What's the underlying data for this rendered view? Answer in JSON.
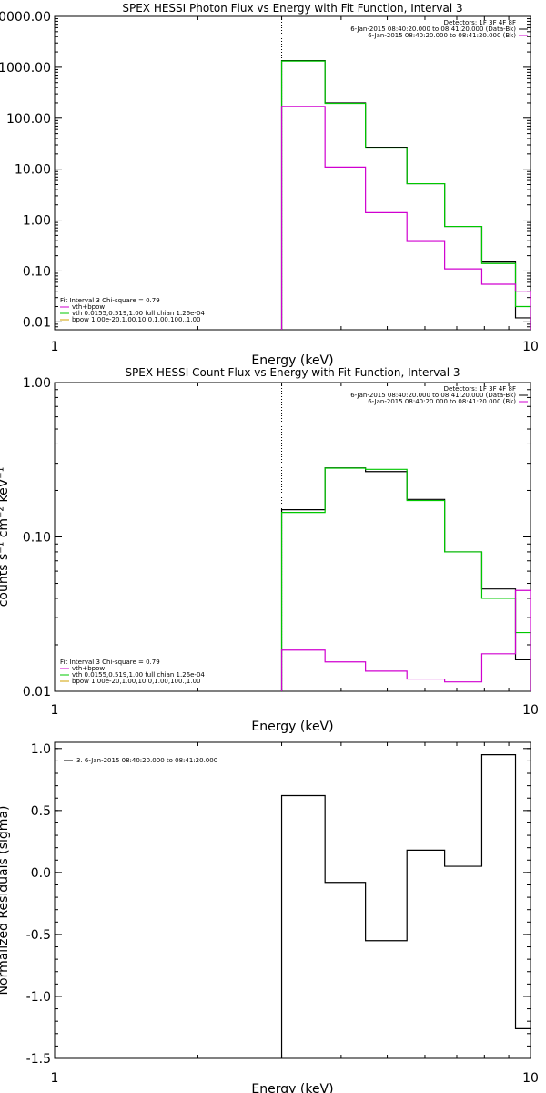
{
  "colors": {
    "background": "#ffffff",
    "axes": "#000000",
    "data": "#000000",
    "total_fit": "#d000d0",
    "vth": "#00c800",
    "bpow": "#d0a000",
    "background_series": "#d000d0"
  },
  "chart_data": [
    {
      "type": "line",
      "step": true,
      "yscale": "log",
      "xscale": "log",
      "title": "SPEX HESSI Photon Flux vs Energy with Fit Function, Interval 3",
      "xlabel": "Energy (keV)",
      "ylabel": "",
      "xlim": [
        1,
        10
      ],
      "ylim": [
        0.007,
        10000
      ],
      "yticks": [
        "0.01",
        "0.10",
        "1.00",
        "10.00",
        "100.00",
        "1000.00",
        "10000.00"
      ],
      "yticks_values": [
        0.01,
        0.1,
        1,
        10,
        100,
        1000,
        10000
      ],
      "xticks": [
        "1",
        "10"
      ],
      "xticks_values": [
        1,
        10
      ],
      "vline": 3,
      "legend_top": [
        "Detectors: 1F 3F 4F 8F",
        "6-Jan-2015 08:40:20.000 to 08:41:20.000 (Data-Bk)",
        "6-Jan-2015 08:40:20.000 to 08:41:20.000 (Bk)"
      ],
      "legend_top_colors": [
        "#000000",
        "#000000",
        "#d000d0"
      ],
      "legend_bottom": [
        "Fit Interval 3   Chi-square = 0.79",
        "vth+bpow",
        "vth 0.0155,0.519,1.00  full chian 1.26e-04",
        "bpow 1.00e-20,1.00,10.0,1.00,100.,1.00"
      ],
      "legend_bottom_colors": [
        "",
        "#d000d0",
        "#00c800",
        "#d0a000"
      ],
      "edges": [
        3,
        3.7,
        4.5,
        5.5,
        6.6,
        7.9,
        9.3,
        10
      ],
      "series": [
        {
          "name": "6-Jan-2015 08:40:20.000 to 08:41:20.000 (Data-Bk)",
          "color": "#000000",
          "values": [
            1350,
            200,
            27,
            5.2,
            0.75,
            0.15,
            0.012
          ]
        },
        {
          "name": "vth 0.0155,0.519,1.00  full chian 1.26e-04",
          "color": "#00c800",
          "values": [
            1320,
            195,
            26,
            5.2,
            0.75,
            0.14,
            0.02
          ]
        },
        {
          "name": "6-Jan-2015 08:40:20.000 to 08:41:20.000 (Bk)",
          "color": "#d000d0",
          "values": [
            170,
            11,
            1.4,
            0.38,
            0.11,
            0.055,
            0.04
          ]
        }
      ]
    },
    {
      "type": "line",
      "step": true,
      "yscale": "log",
      "xscale": "log",
      "title": "SPEX HESSI Count Flux vs Energy with Fit Function, Interval 3",
      "xlabel": "Energy (keV)",
      "ylabel": "counts s⁻¹ cm⁻² keV⁻¹",
      "xlim": [
        1,
        10
      ],
      "ylim": [
        0.01,
        1.0
      ],
      "yticks": [
        "0.01",
        "0.10",
        "1.00"
      ],
      "yticks_values": [
        0.01,
        0.1,
        1
      ],
      "xticks": [
        "1",
        "10"
      ],
      "xticks_values": [
        1,
        10
      ],
      "vline": 3,
      "legend_top": [
        "Detectors: 1F 3F 4F 8F",
        "6-Jan-2015 08:40:20.000 to 08:41:20.000 (Data-Bk)",
        "6-Jan-2015 08:40:20.000 to 08:41:20.000 (Bk)"
      ],
      "legend_top_colors": [
        "#000000",
        "#000000",
        "#d000d0"
      ],
      "legend_bottom": [
        "Fit Interval 3   Chi-square = 0.79",
        "vth+bpow",
        "vth 0.0155,0.519,1.00  full chian 1.26e-04",
        "bpow 1.00e-20,1.00,10.0,1.00,100.,1.00"
      ],
      "legend_bottom_colors": [
        "",
        "#d000d0",
        "#00c800",
        "#d0a000"
      ],
      "edges": [
        3,
        3.7,
        4.5,
        5.5,
        6.6,
        7.9,
        9.3,
        10
      ],
      "series": [
        {
          "name": "6-Jan-2015 08:40:20.000 to 08:41:20.000 (Data-Bk)",
          "color": "#000000",
          "values": [
            0.15,
            0.28,
            0.265,
            0.175,
            0.08,
            0.046,
            0.016
          ]
        },
        {
          "name": "vth 0.0155,0.519,1.00  full chian 1.26e-04",
          "color": "#00c800",
          "values": [
            0.144,
            0.279,
            0.274,
            0.172,
            0.08,
            0.04,
            0.024
          ]
        },
        {
          "name": "6-Jan-2015 08:40:20.000 to 08:41:20.000 (Bk)",
          "color": "#d000d0",
          "values": [
            0.0185,
            0.0155,
            0.0135,
            0.012,
            0.0115,
            0.0175,
            0.045
          ]
        }
      ]
    },
    {
      "type": "line",
      "step": true,
      "yscale": "linear",
      "xscale": "log",
      "title": "",
      "xlabel": "Energy (keV)",
      "ylabel": "Normalized Residuals (sigma)",
      "xlim": [
        1,
        10
      ],
      "ylim": [
        -1.5,
        1.05
      ],
      "yticks": [
        "-1.5",
        "-1.0",
        "-0.5",
        "0.0",
        "0.5",
        "1.0"
      ],
      "yticks_values": [
        -1.5,
        -1.0,
        -0.5,
        0.0,
        0.5,
        1.0
      ],
      "xticks": [
        "1",
        "10"
      ],
      "xticks_values": [
        1,
        10
      ],
      "legend_top_left": "3.  6-Jan-2015 08:40:20.000 to 08:41:20.000",
      "edges": [
        3,
        3.7,
        4.5,
        5.5,
        6.6,
        7.9,
        9.3,
        10
      ],
      "series": [
        {
          "name": "3.  6-Jan-2015 08:40:20.000 to 08:41:20.000",
          "color": "#000000",
          "values": [
            0.62,
            -0.08,
            -0.55,
            0.18,
            0.05,
            0.95,
            -1.26
          ]
        }
      ]
    }
  ]
}
